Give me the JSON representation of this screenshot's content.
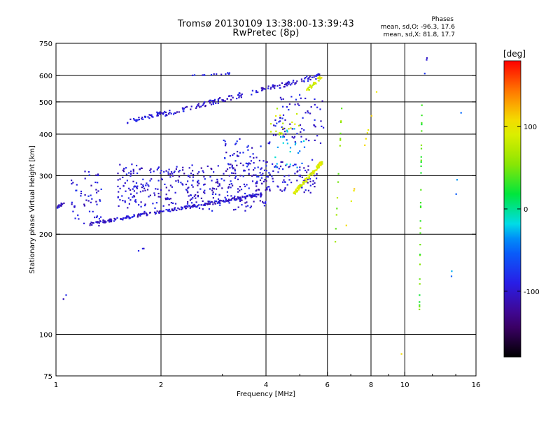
{
  "title": "Tromsø 20130109 13:38:00-13:39:43",
  "subtitle": "RwPretec (8p)",
  "phases": {
    "heading": "Phases",
    "o_line": "mean, sd,O: -96.3, 17.6",
    "x_line": "mean, sd,X:  81.8, 17.7"
  },
  "colorbar": {
    "label": "[deg]",
    "range": [
      -180,
      180
    ],
    "ticks": [
      100,
      0,
      -100
    ]
  },
  "chart_data": {
    "type": "scatter",
    "xlabel": "Frequency [MHz]",
    "ylabel": "Stationary phase Virtual Height [km]",
    "xscale": "log",
    "yscale": "log",
    "xlim": [
      1,
      16
    ],
    "ylim": [
      75,
      750
    ],
    "xticks": [
      1,
      2,
      4,
      6,
      8,
      10,
      16
    ],
    "yticks": [
      75,
      100,
      200,
      300,
      400,
      500,
      600,
      750
    ],
    "xgrid": [
      2,
      4,
      6,
      8,
      10
    ],
    "ygrid": [
      100,
      200,
      300,
      400,
      500,
      600
    ],
    "clusters": [
      {
        "f": [
          1.6,
          2.05
        ],
        "h": [
          435,
          465
        ],
        "phase": -95,
        "n": 45,
        "spread": 0.03
      },
      {
        "f": [
          2.05,
          5.7
        ],
        "h": [
          460,
          600
        ],
        "phase": -100,
        "n": 160,
        "spread": 0.035
      },
      {
        "f": [
          2.4,
          3.2
        ],
        "h": [
          600,
          610
        ],
        "phase": -95,
        "n": 14,
        "spread": 0.01
      },
      {
        "f": [
          1.25,
          4.0
        ],
        "h": [
          215,
          265
        ],
        "phase": -100,
        "n": 230,
        "spread": 0.02
      },
      {
        "f": [
          4.0,
          5.6
        ],
        "h": [
          265,
          330
        ],
        "phase": -100,
        "n": 90,
        "spread": 0.05
      },
      {
        "f": [
          1.5,
          4.0
        ],
        "h": [
          240,
          320
        ],
        "phase": -100,
        "n": 360,
        "spread": 0.06
      },
      {
        "f": [
          1.0,
          1.06
        ],
        "h": [
          240,
          250
        ],
        "phase": -100,
        "n": 18,
        "spread": 0.02
      },
      {
        "f": [
          1.1,
          1.35
        ],
        "h": [
          210,
          310
        ],
        "phase": -95,
        "n": 55,
        "spread": 0.07
      },
      {
        "f": [
          3.0,
          4.1
        ],
        "h": [
          300,
          380
        ],
        "phase": -95,
        "n": 60,
        "spread": 0.06
      },
      {
        "f": [
          4.2,
          5.9
        ],
        "h": [
          380,
          520
        ],
        "phase": -95,
        "n": 70,
        "spread": 0.06
      },
      {
        "f": [
          4.8,
          5.8
        ],
        "h": [
          265,
          330
        ],
        "phase": 90,
        "n": 110,
        "spread": 0.03
      },
      {
        "f": [
          5.2,
          5.8
        ],
        "h": [
          540,
          600
        ],
        "phase": 90,
        "n": 35,
        "spread": 0.03
      },
      {
        "f": [
          4.1,
          5.0
        ],
        "h": [
          390,
          470
        ],
        "phase": 80,
        "n": 20,
        "spread": 0.05
      },
      {
        "f": [
          4.2,
          5.2
        ],
        "h": [
          300,
          430
        ],
        "phase": -30,
        "n": 25,
        "spread": 0.07
      },
      {
        "f": [
          11.0,
          11.2
        ],
        "h": [
          110,
          530
        ],
        "phase": 40,
        "n": 30,
        "spread": 0.02
      },
      {
        "f": [
          11.4,
          11.6
        ],
        "h": [
          610,
          690
        ],
        "phase": -95,
        "n": 3,
        "spread": 0.01
      },
      {
        "f": [
          6.3,
          6.6
        ],
        "h": [
          180,
          490
        ],
        "phase": 60,
        "n": 14,
        "spread": 0.03
      },
      {
        "f": [
          6.0,
          8.5
        ],
        "h": [
          120,
          600
        ],
        "phase": 100,
        "n": 10,
        "spread": 0.03
      },
      {
        "f": [
          13.5,
          14.5
        ],
        "h": [
          130,
          470
        ],
        "phase": -40,
        "n": 5,
        "spread": 0.02
      },
      {
        "f": [
          1.05,
          1.07
        ],
        "h": [
          128,
          132
        ],
        "phase": -95,
        "n": 2,
        "spread": 0.01
      },
      {
        "f": [
          1.7,
          1.8
        ],
        "h": [
          178,
          182
        ],
        "phase": -95,
        "n": 3,
        "spread": 0.01
      },
      {
        "f": [
          9.6,
          9.8
        ],
        "h": [
          85,
          88
        ],
        "phase": 95,
        "n": 1,
        "spread": 0.01
      }
    ]
  }
}
